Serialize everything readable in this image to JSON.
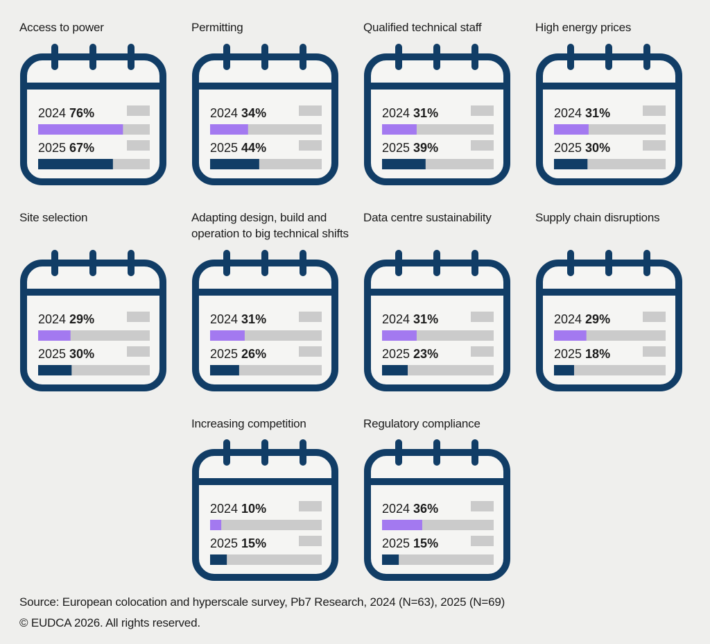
{
  "chart_data": {
    "type": "bar",
    "x_max": 100,
    "years": [
      "2024",
      "2025"
    ],
    "colors": {
      "2024": "#a379f0",
      "2025": "#113d66",
      "track": "#cbcbcb",
      "frame": "#113d66"
    },
    "panels": [
      {
        "title": "Access to power",
        "values": [
          76,
          67
        ],
        "labels": [
          "76%",
          "67%"
        ]
      },
      {
        "title": "Permitting",
        "values": [
          34,
          44
        ],
        "labels": [
          "34%",
          "44%"
        ]
      },
      {
        "title": "Qualified technical staff",
        "values": [
          31,
          39
        ],
        "labels": [
          "31%",
          "39%"
        ]
      },
      {
        "title": "High energy prices",
        "values": [
          31,
          30
        ],
        "labels": [
          "31%",
          "30%"
        ]
      },
      {
        "title": "Site selection",
        "values": [
          29,
          30
        ],
        "labels": [
          "29%",
          "30%"
        ]
      },
      {
        "title": "Adapting design, build and operation to big technical shifts",
        "values": [
          31,
          26
        ],
        "labels": [
          "31%",
          "26%"
        ]
      },
      {
        "title": "Data centre sustainability",
        "values": [
          31,
          23
        ],
        "labels": [
          "31%",
          "23%"
        ]
      },
      {
        "title": "Supply chain disruptions",
        "values": [
          29,
          18
        ],
        "labels": [
          "29%",
          "18%"
        ]
      },
      {
        "title": "Increasing competition",
        "values": [
          10,
          15
        ],
        "labels": [
          "10%",
          "15%"
        ]
      },
      {
        "title": "Regulatory compliance",
        "values": [
          36,
          15
        ],
        "labels": [
          "36%",
          "15%"
        ]
      }
    ]
  },
  "footer": {
    "source": "Source: European colocation and hyperscale survey, Pb7 Research, 2024 (N=63), 2025 (N=69)",
    "copyright": "© EUDCA 2026. All rights reserved."
  }
}
